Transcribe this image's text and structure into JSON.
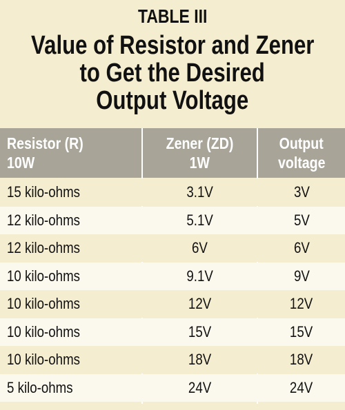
{
  "table": {
    "label": "TABLE III",
    "title_lines": [
      "Value of Resistor and Zener",
      "to Get the Desired",
      "Output Voltage"
    ],
    "headers": [
      [
        "Resistor (R)",
        "10W"
      ],
      [
        "Zener (ZD)",
        "1W"
      ],
      [
        "Output",
        "voltage"
      ]
    ],
    "rows": [
      [
        "15 kilo-ohms",
        "3.1V",
        "3V"
      ],
      [
        "12 kilo-ohms",
        "5.1V",
        "5V"
      ],
      [
        "12 kilo-ohms",
        "6V",
        "6V"
      ],
      [
        "10 kilo-ohms",
        "9.1V",
        "9V"
      ],
      [
        "10 kilo-ohms",
        "12V",
        "12V"
      ],
      [
        "10 kilo-ohms",
        "15V",
        "15V"
      ],
      [
        "10 kilo-ohms",
        "18V",
        "18V"
      ],
      [
        "5 kilo-ohms",
        "24V",
        "24V"
      ]
    ]
  }
}
